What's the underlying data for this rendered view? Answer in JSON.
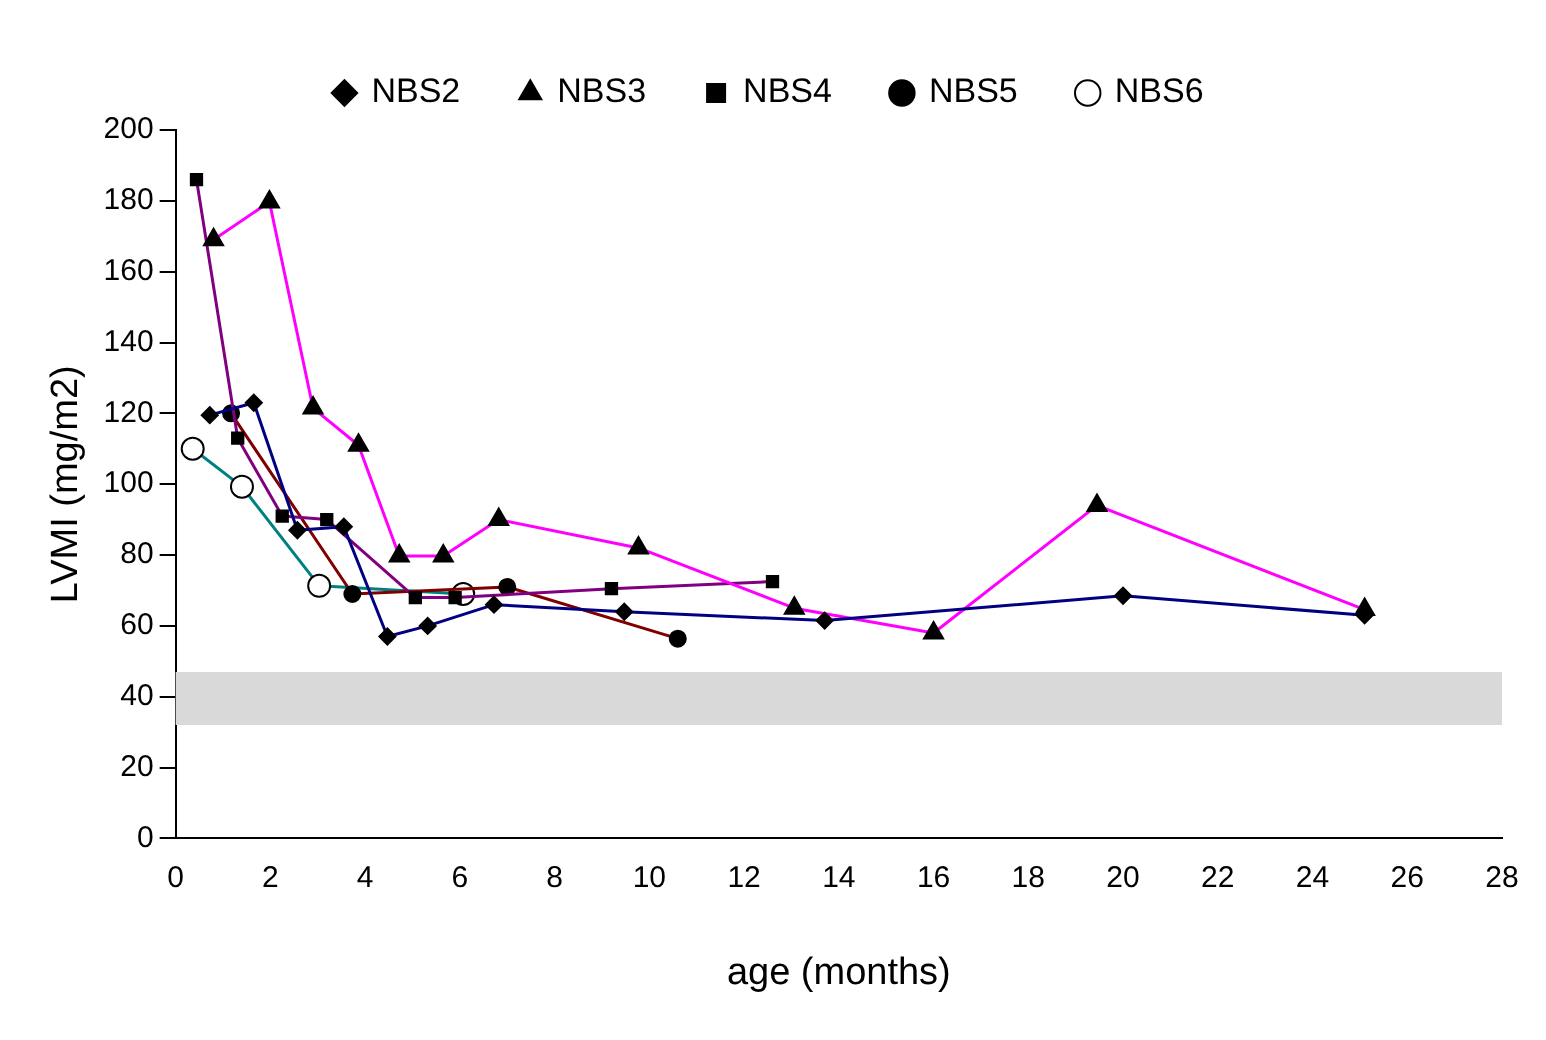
{
  "chart_data": {
    "type": "line",
    "xlabel": "age (months)",
    "ylabel": "LVMI (mg/m2)",
    "xlim": [
      0,
      28
    ],
    "xticks": [
      0,
      2,
      4,
      6,
      8,
      10,
      12,
      14,
      16,
      18,
      20,
      22,
      24,
      26,
      28
    ],
    "ylim": [
      0,
      200
    ],
    "yticks": [
      0,
      20,
      40,
      60,
      80,
      100,
      120,
      140,
      160,
      180,
      200
    ],
    "grid": false,
    "legend": "top",
    "line_style": "solid",
    "bands": [
      {
        "axis": "y",
        "from": 32,
        "to": 47,
        "color": "#d9d9d9"
      }
    ],
    "series": [
      {
        "name": "NBS2",
        "color": "#000080",
        "marker": "diamond",
        "x": [
          0.72,
          1.65,
          2.57,
          3.55,
          4.47,
          5.32,
          6.72,
          9.47,
          13.7,
          20,
          25.1
        ],
        "values": [
          119.5,
          123,
          87,
          88,
          57,
          60,
          66,
          64,
          61.5,
          68.5,
          63
        ]
      },
      {
        "name": "NBS3",
        "color": "#ff00ff",
        "marker": "triangle",
        "x": [
          0.8,
          1.98,
          2.9,
          3.86,
          4.72,
          5.65,
          6.82,
          9.77,
          13.06,
          16,
          19.45,
          25.1
        ],
        "values": [
          169,
          179.7,
          121.5,
          111,
          79.7,
          79.7,
          90,
          82,
          65,
          58,
          94,
          64.6
        ]
      },
      {
        "name": "NBS4",
        "color": "#800080",
        "marker": "square",
        "x": [
          0.44,
          1.31,
          2.25,
          3.19,
          5.06,
          5.9,
          9.2,
          12.6
        ],
        "values": [
          186,
          113,
          91,
          90,
          68,
          68,
          70.5,
          72.5
        ]
      },
      {
        "name": "NBS5",
        "color": "#800000",
        "marker": "circle",
        "x": [
          1.17,
          3.73,
          7,
          10.6
        ],
        "values": [
          120,
          69,
          71,
          56.4
        ]
      },
      {
        "name": "NBS6",
        "color": "#008080",
        "marker": "open circle",
        "x": [
          0.36,
          1.4,
          3.03,
          6.07
        ],
        "values": [
          110,
          99.3,
          71.3,
          69
        ]
      }
    ]
  }
}
